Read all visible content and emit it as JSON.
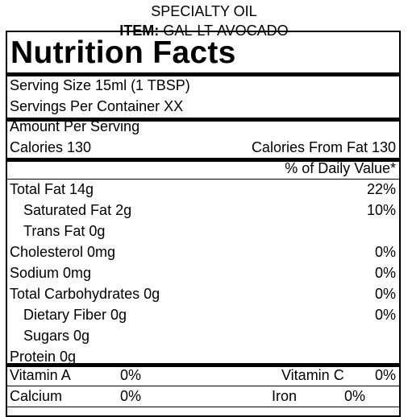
{
  "header": {
    "product_name": "SPECIALTY OIL",
    "item_label": "ITEM:",
    "item_code": "GAL-LT-AVOCADO"
  },
  "label": {
    "title": "Nutrition Facts",
    "serving_size": "Serving Size  15ml (1 TBSP)",
    "servings_per_container": "Servings Per Container  XX",
    "amount_per_serving": "Amount Per Serving",
    "calories": "Calories 130",
    "calories_from_fat": "Calories From Fat 130",
    "daily_value_header": "% of Daily Value*"
  },
  "nutrients": {
    "total_fat": {
      "label": "Total Fat  14g",
      "dv": "22%"
    },
    "saturated_fat": {
      "label": "Saturated Fat   2g",
      "dv": "10%"
    },
    "trans_fat": {
      "label": "Trans Fat  0g",
      "dv": ""
    },
    "cholesterol": {
      "label": "Cholesterol  0mg",
      "dv": "0%"
    },
    "sodium": {
      "label": "Sodium  0mg",
      "dv": "0%"
    },
    "total_carbohydrates": {
      "label": "Total Carbohydrates  0g",
      "dv": "0%"
    },
    "dietary_fiber": {
      "label": "Dietary Fiber  0g",
      "dv": "0%"
    },
    "sugars": {
      "label": "Sugars  0g",
      "dv": ""
    },
    "protein": {
      "label": "Protein  0g",
      "dv": ""
    }
  },
  "vitamins": {
    "vitamin_a": {
      "label": "Vitamin A",
      "value": "0%"
    },
    "vitamin_c": {
      "label": "Vitamin C",
      "value": "0%"
    },
    "calcium": {
      "label": "Calcium",
      "value": "0%"
    },
    "iron": {
      "label": "Iron",
      "value": "0%"
    }
  }
}
